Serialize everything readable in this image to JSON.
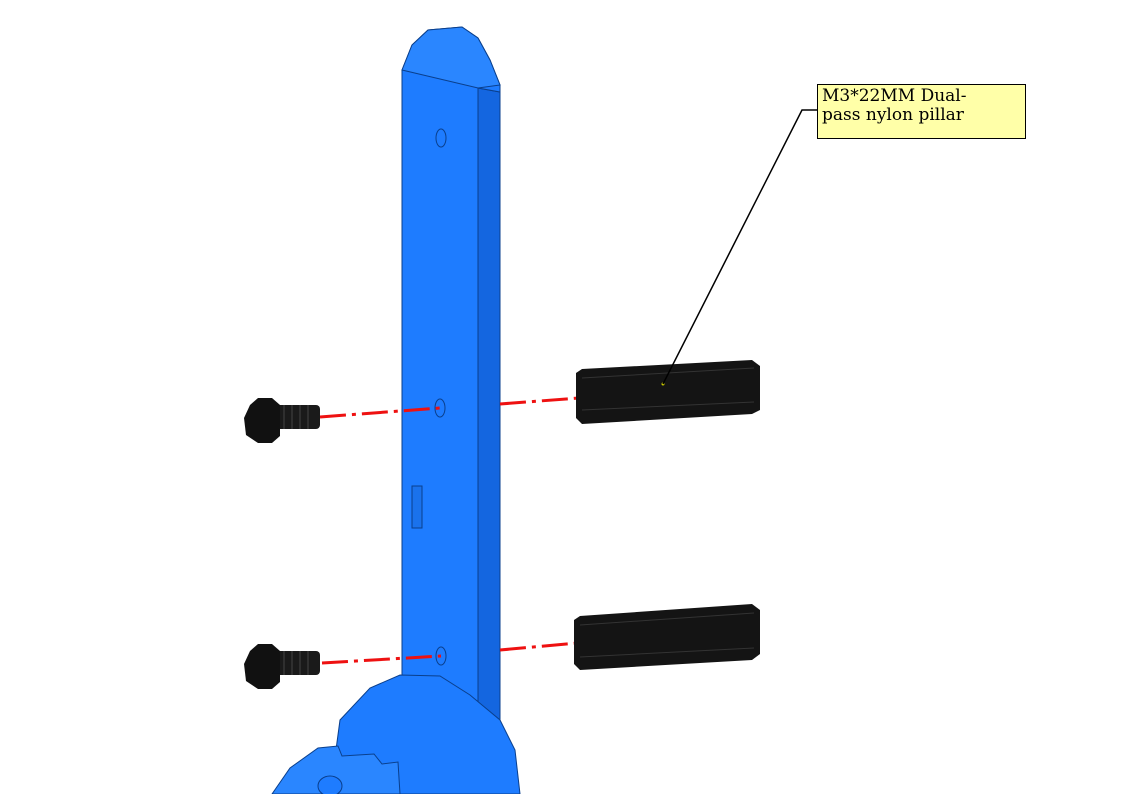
{
  "callout": {
    "text": "M3*22MM Dual-\npass nylon pillar"
  },
  "colors": {
    "bracket": "#1e7cff",
    "bracket_edge": "#0a3f8c",
    "hardware": "#111111",
    "axis_line": "#ee1111",
    "callout_fill": "#ffffa8"
  },
  "parts": {
    "bracket": "blue-bracket",
    "screws": [
      "screw-upper",
      "screw-lower"
    ],
    "pillars": [
      "pillar-upper",
      "pillar-lower"
    ]
  }
}
